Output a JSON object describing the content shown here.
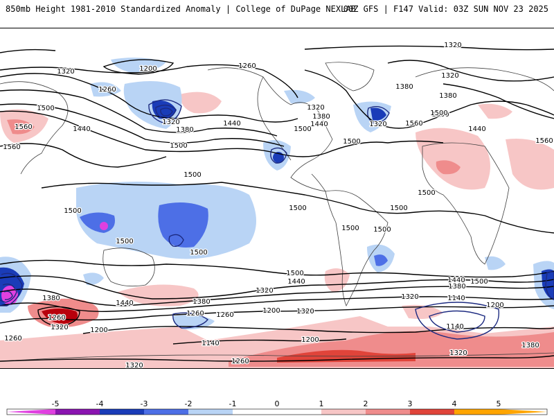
{
  "header": {
    "left": "850mb Height 1981-2010 Standardized Anomaly | College of DuPage NEXLAB",
    "right": "00Z GFS | F147 Valid: 03Z SUN NOV 23 2025"
  },
  "colors": {
    "neg5": "#e040e0",
    "neg4": "#8a14b0",
    "neg3": "#1a3cb8",
    "neg2": "#4d6fe6",
    "neg1": "#b9d4f5",
    "zero": "#ffffff",
    "pos1": "#f7c6c6",
    "pos2": "#ef8c8c",
    "pos3": "#e0443a",
    "pos4": "#b8000c",
    "pos5": "#ffa500",
    "contour": "#000000",
    "low_center_contour": "#1c2a80",
    "coast": "#404040"
  },
  "colorbar": {
    "ticks": [
      "-5",
      "-4",
      "-3",
      "-2",
      "-1",
      "0",
      "1",
      "2",
      "3",
      "4",
      "5"
    ]
  },
  "contour_labels": [
    {
      "text": "1320"
    },
    {
      "text": "1200"
    },
    {
      "text": "1320"
    },
    {
      "text": "1260"
    },
    {
      "text": "1260"
    },
    {
      "text": "1500"
    },
    {
      "text": "1320"
    },
    {
      "text": "1380"
    },
    {
      "text": "1440"
    },
    {
      "text": "1500"
    },
    {
      "text": "1500"
    },
    {
      "text": "1440"
    },
    {
      "text": "1560"
    },
    {
      "text": "1560"
    },
    {
      "text": "1440"
    },
    {
      "text": "1320"
    },
    {
      "text": "1320"
    },
    {
      "text": "1380"
    },
    {
      "text": "1500"
    },
    {
      "text": "1440"
    },
    {
      "text": "1380"
    },
    {
      "text": "1380"
    },
    {
      "text": "1320"
    },
    {
      "text": "1500"
    },
    {
      "text": "1560"
    },
    {
      "text": "1440"
    },
    {
      "text": "1560"
    },
    {
      "text": "1500"
    },
    {
      "text": "1500"
    },
    {
      "text": "1500"
    },
    {
      "text": "1500"
    },
    {
      "text": "1500"
    },
    {
      "text": "1500"
    },
    {
      "text": "1500"
    },
    {
      "text": "1500"
    },
    {
      "text": "1500"
    },
    {
      "text": "1500"
    },
    {
      "text": "1500"
    },
    {
      "text": "1440"
    },
    {
      "text": "1500"
    },
    {
      "text": "1440"
    },
    {
      "text": "1380"
    },
    {
      "text": "1380"
    },
    {
      "text": "1320"
    },
    {
      "text": "1380"
    },
    {
      "text": "1440"
    },
    {
      "text": "1260"
    },
    {
      "text": "1320"
    },
    {
      "text": "1140"
    },
    {
      "text": "1200"
    },
    {
      "text": "1320"
    },
    {
      "text": "1260"
    },
    {
      "text": "1200"
    },
    {
      "text": "1260"
    },
    {
      "text": "1140"
    },
    {
      "text": "1200"
    },
    {
      "text": "1200"
    },
    {
      "text": "1140"
    },
    {
      "text": "1260"
    },
    {
      "text": "1320"
    },
    {
      "text": "1380"
    },
    {
      "text": "1320"
    },
    {
      "text": "1260"
    },
    {
      "text": "1320"
    }
  ]
}
